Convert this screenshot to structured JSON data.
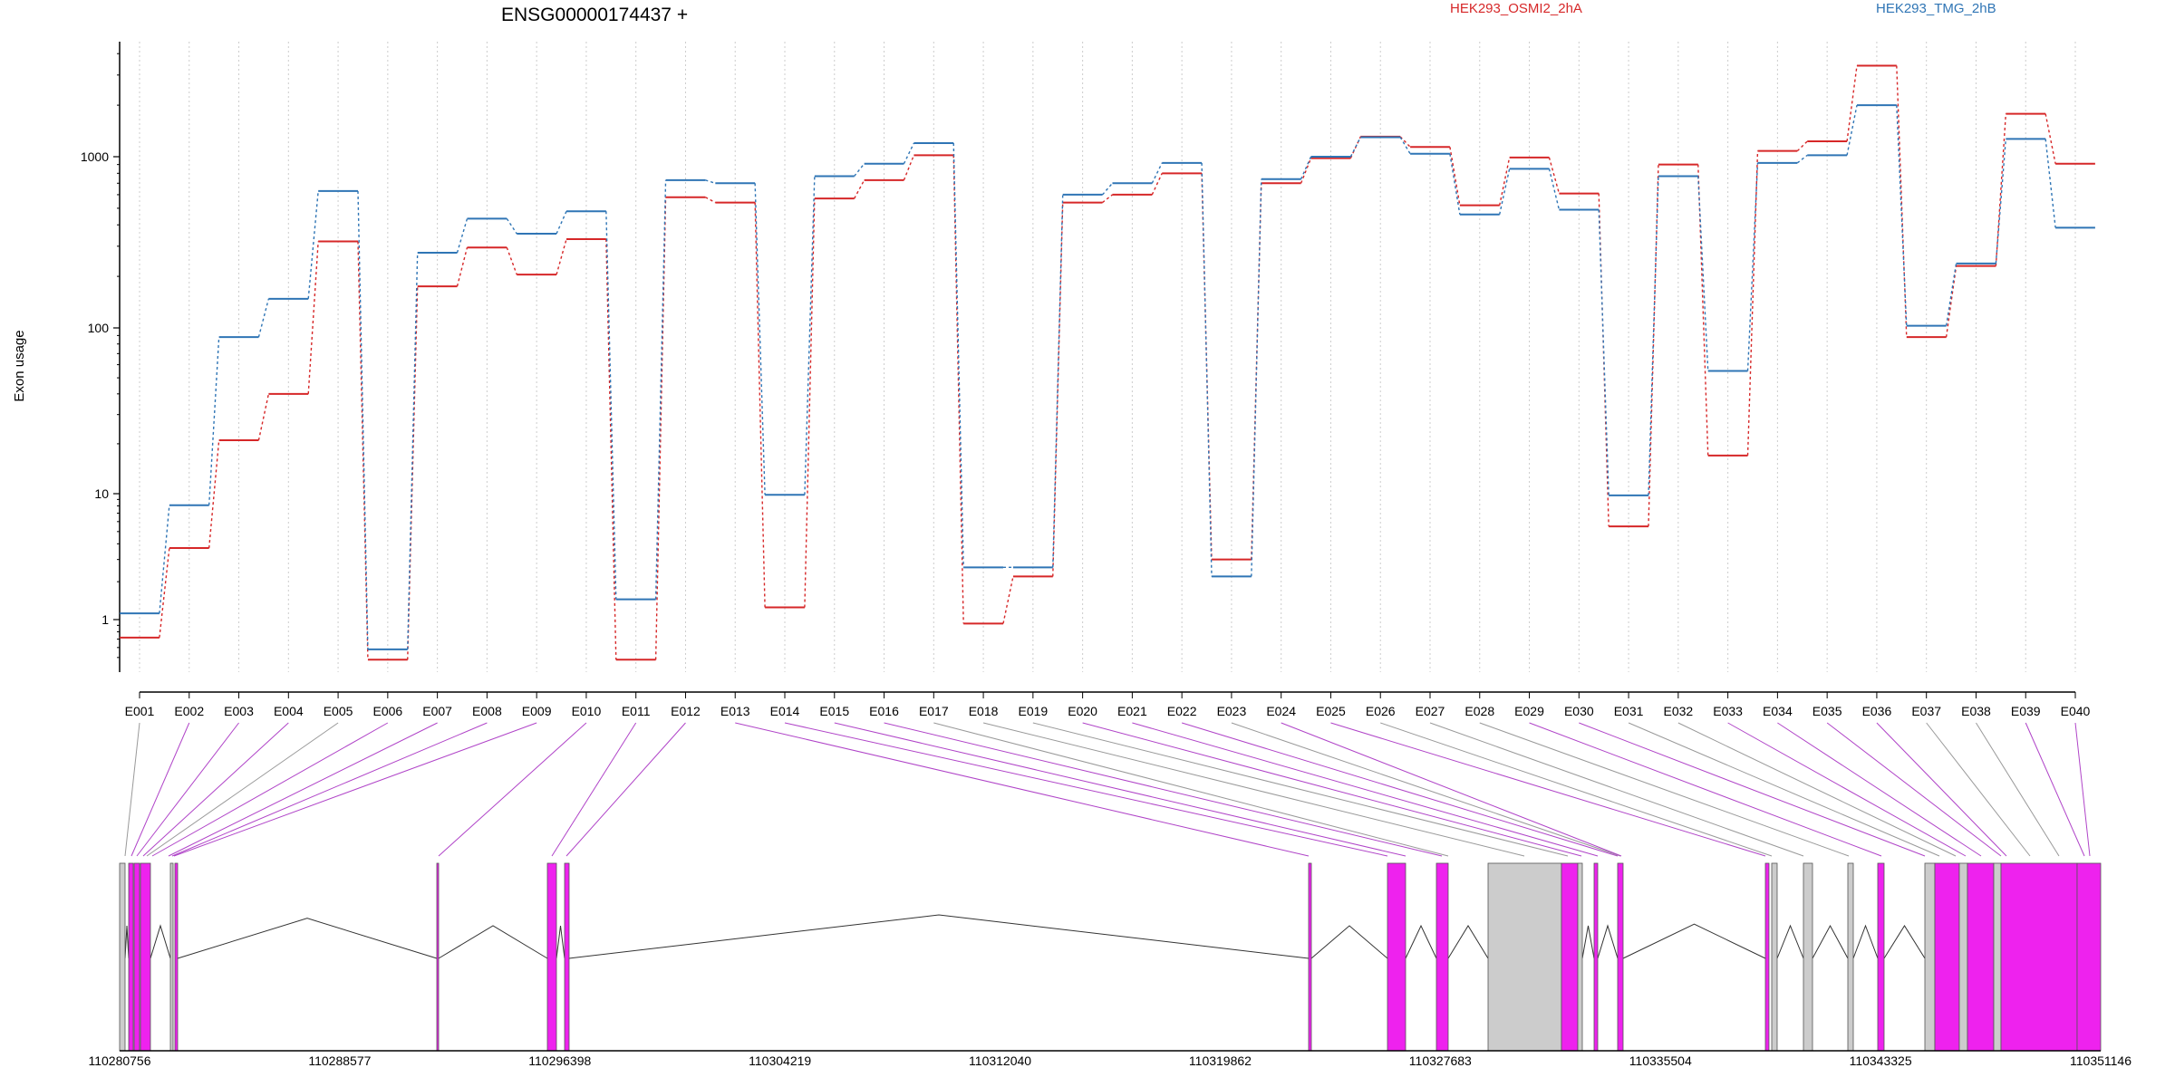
{
  "chart_data": {
    "type": "line",
    "title": "ENSG00000174437 +",
    "ylabel": "Exon usage",
    "xlabel": "",
    "yscale": "log",
    "ylim": [
      0.5,
      5000
    ],
    "ytick_labels": [
      "1",
      "10",
      "100",
      "1000"
    ],
    "ytick_values": [
      1,
      10,
      100,
      1000
    ],
    "grid": "vertical dotted per exon",
    "legend_placement": "top",
    "categories": [
      "E001",
      "E002",
      "E003",
      "E004",
      "E005",
      "E006",
      "E007",
      "E008",
      "E009",
      "E010",
      "E011",
      "E012",
      "E013",
      "E014",
      "E015",
      "E016",
      "E017",
      "E018",
      "E019",
      "E020",
      "E021",
      "E022",
      "E023",
      "E024",
      "E025",
      "E026",
      "E027",
      "E028",
      "E029",
      "E030",
      "E031",
      "E032",
      "E033",
      "E034",
      "E035",
      "E036",
      "E037",
      "E038",
      "E039",
      "E040"
    ],
    "series": [
      {
        "name": "HEK293_OSMI2_2hA",
        "color": "#d62728",
        "values": [
          0.72,
          3.7,
          21,
          40,
          320,
          0.48,
          175,
          295,
          205,
          330,
          0.48,
          580,
          540,
          1.25,
          570,
          730,
          1020,
          0.93,
          2.2,
          540,
          600,
          800,
          3.0,
          700,
          980,
          1310,
          1140,
          520,
          990,
          610,
          5.5,
          900,
          17,
          1080,
          1230,
          3400,
          88,
          230,
          1780,
          910
        ]
      },
      {
        "name": "HEK293_TMG_2hB",
        "color": "#2f75b5",
        "values": [
          1.12,
          8.1,
          88,
          148,
          630,
          0.58,
          275,
          435,
          355,
          480,
          1.45,
          730,
          700,
          9.8,
          770,
          910,
          1200,
          2.6,
          2.6,
          600,
          700,
          920,
          2.2,
          740,
          1000,
          1300,
          1040,
          460,
          850,
          490,
          9.7,
          770,
          55,
          920,
          1020,
          2000,
          103,
          238,
          1270,
          385
        ]
      }
    ]
  },
  "gene_model": {
    "coordinate_labels": [
      "110280756",
      "110288577",
      "110296398",
      "110304219",
      "110312040",
      "110319862",
      "110327683",
      "110335504",
      "110343325",
      "110351146"
    ]
  },
  "colors": {
    "significant_exon": "#ee22ee",
    "other_exon": "#cccccc",
    "connector_significant": "#b044c8",
    "connector_other": "#999999",
    "grid": "#cccccc"
  }
}
